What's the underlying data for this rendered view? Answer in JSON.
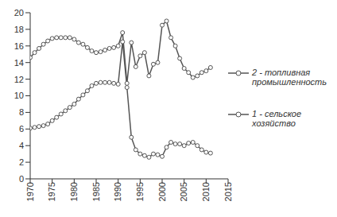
{
  "chart_data": {
    "type": "line",
    "x": [
      1970,
      1971,
      1972,
      1973,
      1974,
      1975,
      1976,
      1977,
      1978,
      1979,
      1980,
      1981,
      1982,
      1983,
      1984,
      1985,
      1986,
      1987,
      1988,
      1989,
      1990,
      1991,
      1992,
      1993,
      1994,
      1995,
      1996,
      1997,
      1998,
      1999,
      2000,
      2001,
      2002,
      2003,
      2004,
      2005,
      2006,
      2007,
      2008,
      2009,
      2010,
      2011
    ],
    "series": [
      {
        "name": "2 - топливная промышленность",
        "color": "#555555",
        "marker": "o",
        "values": [
          14.6,
          15.2,
          15.7,
          16.2,
          16.6,
          16.9,
          17,
          17,
          17,
          17,
          16.8,
          16.4,
          16.2,
          15.8,
          15.4,
          15.2,
          15.3,
          15.5,
          15.7,
          15.8,
          16,
          17.6,
          11.5,
          16.4,
          13.5,
          14.8,
          15.2,
          12.4,
          13.8,
          14,
          18.5,
          19,
          17,
          16,
          14.5,
          13.3,
          12.8,
          12.2,
          12.4,
          12.8,
          13,
          13.4
        ]
      },
      {
        "name": "1 - сельское хозяйство",
        "color": "#555555",
        "marker": "o",
        "values": [
          6.1,
          6.2,
          6.3,
          6.4,
          6.6,
          7,
          7.4,
          7.8,
          8.2,
          8.6,
          9,
          9.6,
          10.1,
          10.6,
          11.2,
          11.5,
          11.6,
          11.6,
          11.6,
          11.5,
          11.4,
          16.5,
          11,
          5,
          3.5,
          3,
          2.8,
          2.6,
          3,
          2.9,
          2.7,
          3.8,
          4.4,
          4.2,
          4.2,
          4,
          4.3,
          4.4,
          4,
          3.5,
          3.2,
          3.1
        ]
      }
    ],
    "xlim": [
      1970,
      2015
    ],
    "xticks": [
      1970,
      1975,
      1980,
      1985,
      1990,
      1995,
      2000,
      2005,
      2010,
      2015
    ],
    "ylim": [
      0,
      20
    ],
    "yticks": [
      0,
      2,
      4,
      6,
      8,
      10,
      12,
      14,
      16,
      18,
      20
    ],
    "grid": false,
    "legend": "right"
  }
}
